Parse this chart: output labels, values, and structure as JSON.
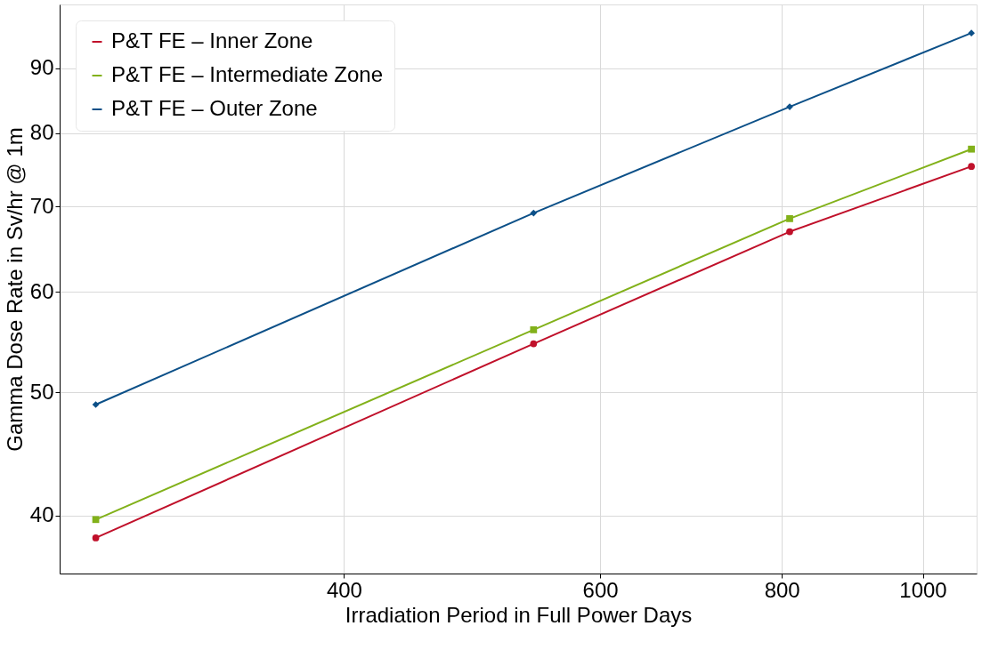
{
  "chart_data": {
    "type": "line",
    "xlabel": "Irradiation Period in Full Power Days",
    "ylabel": "Gamma Dose Rate in Sv/hr @ 1m",
    "x": [
      270,
      540,
      810,
      1080
    ],
    "series": [
      {
        "name": "P&T FE – Inner Zone",
        "color": "#c0102a",
        "marker": "circle",
        "values": [
          38.4,
          54.6,
          66.9,
          75.3
        ]
      },
      {
        "name": "P&T FE – Intermediate Zone",
        "color": "#82b11a",
        "marker": "square",
        "values": [
          39.7,
          56.0,
          68.5,
          77.7
        ]
      },
      {
        "name": "P&T FE – Outer Zone",
        "color": "#0c5088",
        "marker": "diamond",
        "values": [
          48.9,
          69.2,
          83.9,
          95.9
        ]
      }
    ],
    "log": "xy",
    "xlim": [
      255,
      1089
    ],
    "ylim": [
      36,
      101
    ],
    "xticks": [
      400,
      600,
      800,
      1000
    ],
    "yticks": [
      40,
      50,
      60,
      70,
      80,
      90
    ],
    "grid": true,
    "legend": "top left",
    "line_style": "solid"
  }
}
